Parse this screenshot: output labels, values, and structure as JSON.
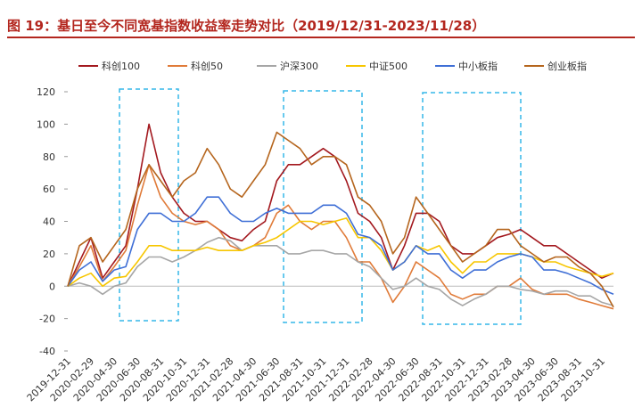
{
  "chart_data": {
    "type": "line",
    "title": "图 19：基日至今不同宽基指数收益率走势对比（2019/12/31-2023/11/28）",
    "categories": [
      "2019-12-31",
      null,
      "2020-02-29",
      null,
      "2020-04-30",
      null,
      "2020-06-30",
      null,
      "2020-08-31",
      null,
      "2020-10-31",
      null,
      "2020-12-31",
      null,
      "2021-02-28",
      null,
      "2021-04-30",
      null,
      "2021-06-30",
      null,
      "2021-08-31",
      null,
      "2021-10-31",
      null,
      "2021-12-31",
      null,
      "2022-02-28",
      null,
      "2022-04-30",
      null,
      "2022-06-30",
      null,
      "2022-08-31",
      null,
      "2022-10-31",
      null,
      "2022-12-31",
      null,
      "2023-02-28",
      null,
      "2023-04-30",
      null,
      "2023-06-30",
      null,
      "2023-08-31",
      null,
      "2023-10-31",
      null
    ],
    "ylim": [
      -40,
      120
    ],
    "yticks": [
      -40,
      -20,
      0,
      20,
      40,
      60,
      80,
      100,
      120
    ],
    "series": [
      {
        "name": "科创100",
        "color": "#a3191f",
        "values": [
          0,
          15,
          30,
          5,
          15,
          25,
          60,
          100,
          70,
          55,
          45,
          40,
          40,
          35,
          30,
          28,
          35,
          40,
          65,
          75,
          75,
          80,
          85,
          80,
          65,
          45,
          40,
          30,
          10,
          25,
          45,
          45,
          40,
          25,
          20,
          20,
          25,
          30,
          32,
          35,
          30,
          25,
          25,
          20,
          15,
          10,
          5,
          8
        ]
      },
      {
        "name": "科创50",
        "color": "#e07b39",
        "values": [
          0,
          12,
          25,
          3,
          12,
          22,
          50,
          75,
          55,
          45,
          40,
          38,
          40,
          35,
          25,
          22,
          25,
          30,
          45,
          50,
          40,
          35,
          40,
          40,
          30,
          15,
          15,
          5,
          -10,
          0,
          15,
          10,
          5,
          -5,
          -8,
          -5,
          -5,
          0,
          0,
          5,
          -2,
          -5,
          -5,
          -5,
          -8,
          -10,
          -12,
          -14
        ]
      },
      {
        "name": "沪深300",
        "color": "#a6a6a6",
        "values": [
          0,
          2,
          0,
          -5,
          0,
          2,
          12,
          18,
          18,
          15,
          18,
          22,
          27,
          30,
          28,
          22,
          25,
          25,
          25,
          20,
          20,
          22,
          22,
          20,
          20,
          15,
          12,
          5,
          -2,
          0,
          5,
          0,
          -2,
          -8,
          -12,
          -8,
          -5,
          0,
          0,
          -2,
          -3,
          -5,
          -3,
          -3,
          -6,
          -6,
          -10,
          -12
        ]
      },
      {
        "name": "中证500",
        "color": "#f7c600",
        "values": [
          0,
          5,
          8,
          0,
          5,
          6,
          15,
          25,
          25,
          22,
          22,
          22,
          24,
          22,
          22,
          22,
          25,
          27,
          30,
          35,
          40,
          40,
          38,
          40,
          42,
          30,
          30,
          22,
          10,
          15,
          25,
          22,
          25,
          15,
          8,
          15,
          15,
          20,
          20,
          20,
          18,
          15,
          15,
          12,
          10,
          8,
          6,
          8
        ]
      },
      {
        "name": "中小板指",
        "color": "#3f6fd6",
        "values": [
          0,
          10,
          15,
          3,
          10,
          12,
          35,
          45,
          45,
          40,
          40,
          45,
          55,
          55,
          45,
          40,
          40,
          45,
          48,
          45,
          45,
          45,
          50,
          50,
          45,
          32,
          30,
          25,
          10,
          15,
          25,
          20,
          20,
          10,
          5,
          10,
          10,
          15,
          18,
          20,
          18,
          10,
          10,
          8,
          5,
          2,
          -2,
          -5
        ]
      },
      {
        "name": "创业板指",
        "color": "#b5651d",
        "values": [
          0,
          25,
          30,
          15,
          25,
          35,
          60,
          75,
          65,
          55,
          65,
          70,
          85,
          75,
          60,
          55,
          65,
          75,
          95,
          90,
          85,
          75,
          80,
          80,
          75,
          55,
          50,
          40,
          20,
          30,
          55,
          45,
          35,
          25,
          15,
          20,
          25,
          35,
          35,
          25,
          20,
          15,
          18,
          18,
          12,
          8,
          0,
          -13
        ]
      }
    ]
  }
}
